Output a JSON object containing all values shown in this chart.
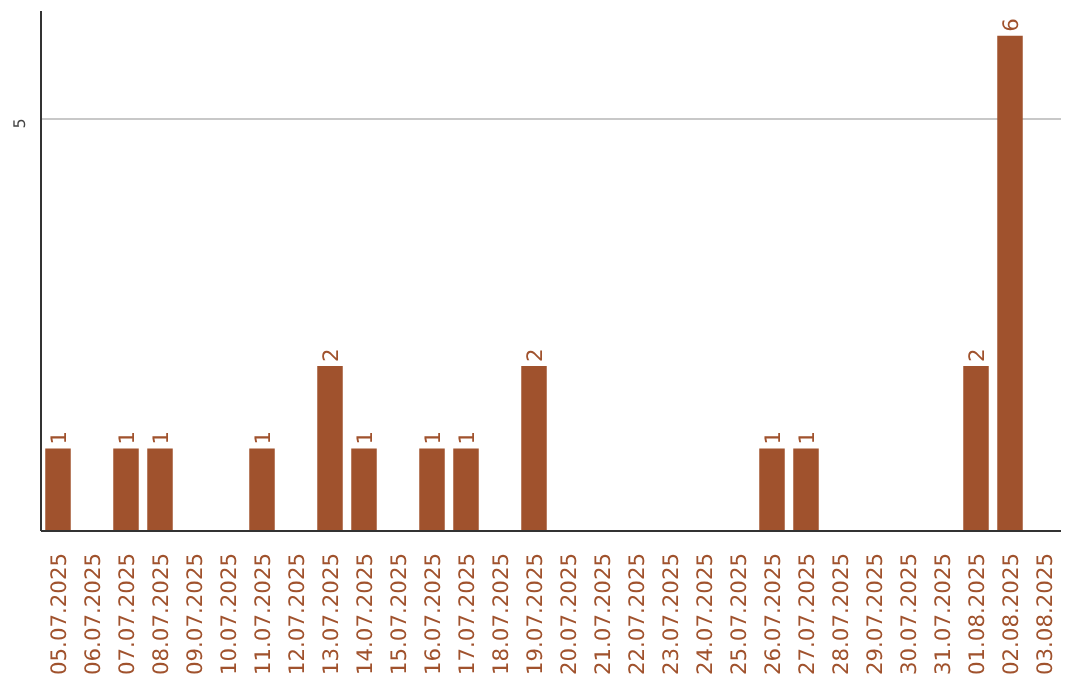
{
  "chart_data": {
    "type": "bar",
    "categories": [
      "05.07.2025",
      "06.07.2025",
      "07.07.2025",
      "08.07.2025",
      "09.07.2025",
      "10.07.2025",
      "11.07.2025",
      "12.07.2025",
      "13.07.2025",
      "14.07.2025",
      "15.07.2025",
      "16.07.2025",
      "17.07.2025",
      "18.07.2025",
      "19.07.2025",
      "20.07.2025",
      "21.07.2025",
      "22.07.2025",
      "23.07.2025",
      "24.07.2025",
      "25.07.2025",
      "26.07.2025",
      "27.07.2025",
      "28.07.2025",
      "29.07.2025",
      "30.07.2025",
      "31.07.2025",
      "01.08.2025",
      "02.08.2025",
      "03.08.2025"
    ],
    "values": [
      1,
      0,
      1,
      1,
      0,
      0,
      1,
      0,
      2,
      1,
      0,
      1,
      1,
      0,
      2,
      0,
      0,
      0,
      0,
      0,
      0,
      1,
      1,
      0,
      0,
      0,
      0,
      2,
      6,
      0
    ],
    "value_labels": [
      "1",
      null,
      "1",
      "1",
      null,
      null,
      "1",
      null,
      "2",
      "1",
      null,
      "1",
      "1",
      null,
      "2",
      null,
      null,
      null,
      null,
      null,
      null,
      "1",
      "1",
      null,
      null,
      null,
      null,
      "2",
      "6",
      null
    ],
    "color": "#a0522d",
    "ylim": [
      0,
      6.3
    ],
    "yticks": [
      5
    ],
    "grid": "y"
  }
}
